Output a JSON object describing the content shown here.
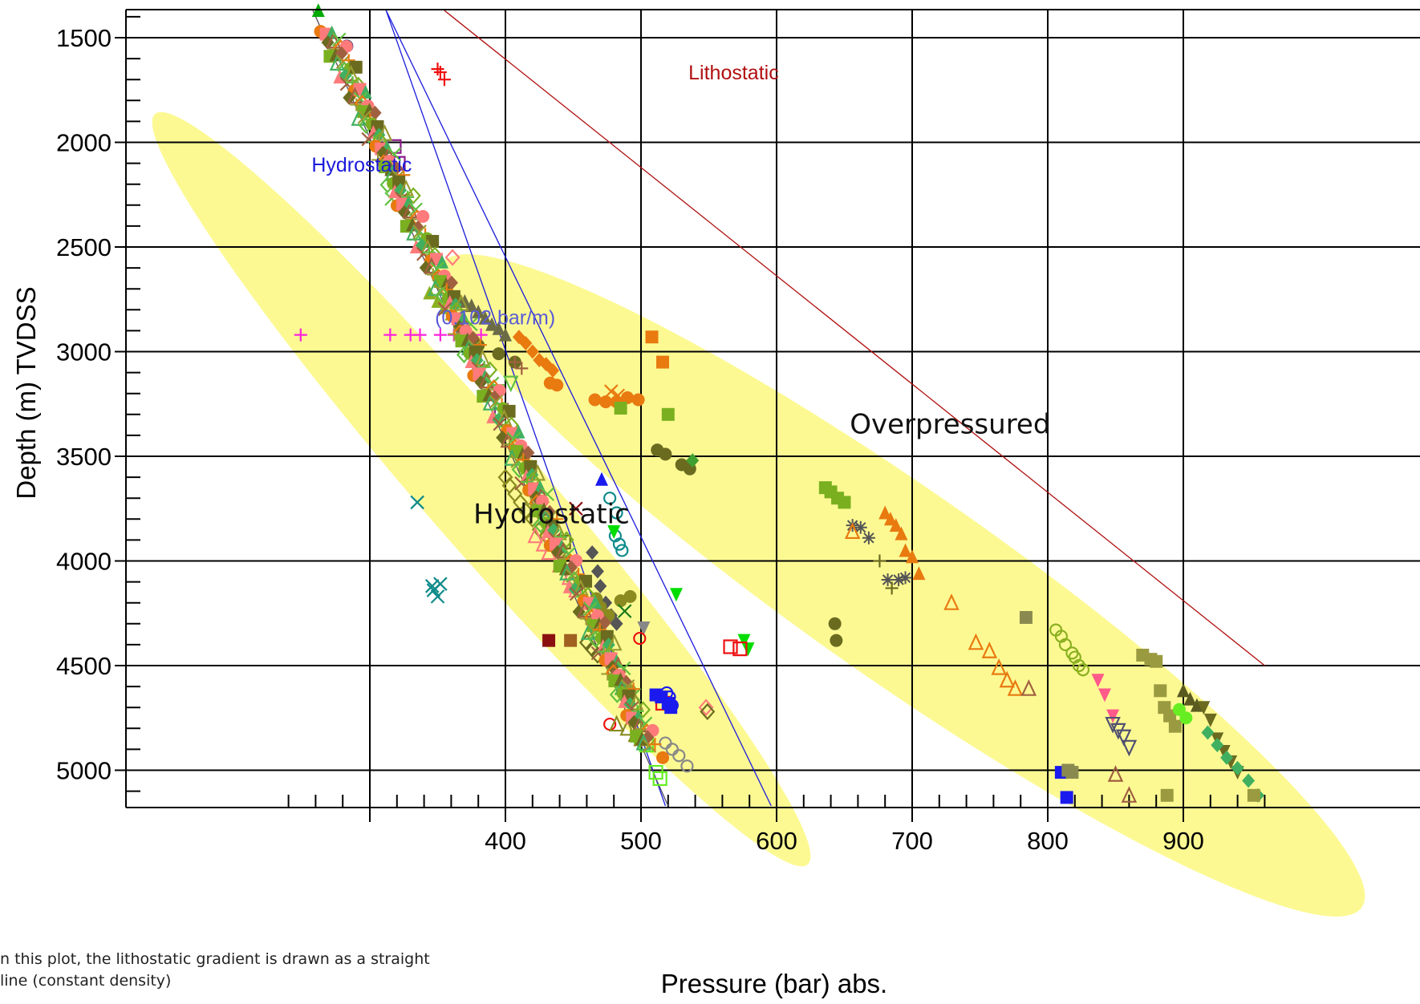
{
  "note": "n this plot, the lithostatic gradient is drawn as a straight line (constant density)",
  "chart_data": {
    "type": "scatter",
    "title": "",
    "xlabel": "Pressure (bar) abs.",
    "ylabel": "Depth (m) TVDSS",
    "xlim": [
      230,
      960
    ],
    "ylim": [
      5170,
      1370
    ],
    "y_inverted": true,
    "grid": true,
    "x_ticks": [
      400,
      500,
      600,
      700,
      800,
      900
    ],
    "y_ticks": [
      1500,
      2000,
      2500,
      3000,
      3500,
      4000,
      4500,
      5000
    ],
    "regions": [
      {
        "name": "Hydrostatic",
        "label_at": [
          434,
          3820
        ]
      },
      {
        "name": "Overpressured",
        "label_at": [
          728,
          3390
        ]
      }
    ],
    "reference_lines": [
      {
        "name": "Lithostatic",
        "color": "#b01010",
        "x": [
          355,
          960
        ],
        "y": [
          1370,
          4500
        ],
        "label_at": [
          535,
          1700
        ]
      },
      {
        "name": "Hydrostatic",
        "color": "#1a1adc",
        "x": [
          312,
          518
        ],
        "y": [
          1370,
          5170
        ],
        "label_at": [
          257,
          2140
        ]
      },
      {
        "name": "Hydrostatic-offset",
        "color": "#1a1adc",
        "x": [
          312,
          596
        ],
        "y": [
          1370,
          5170
        ]
      },
      {
        "name": "Hydrostatic-trend",
        "color": "#505060",
        "x": [
          258,
          520
        ],
        "y": [
          1370,
          5170
        ]
      }
    ],
    "annotations": [
      {
        "text": "(0.102 bar/m)",
        "color": "#5a5ad8",
        "at": [
          348,
          2870
        ]
      }
    ],
    "series": [
      {
        "marker": "plus",
        "color": "#ff22dd",
        "x": [
          249,
          315,
          330,
          337,
          352,
          362,
          372,
          382
        ],
        "y": [
          2920,
          2920,
          2920,
          2920,
          2920,
          2920,
          2920,
          2920
        ]
      },
      {
        "marker": "x",
        "color": "#0e8a8a",
        "x": [
          335,
          346,
          350,
          347,
          352
        ],
        "y": [
          3720,
          4120,
          4170,
          4140,
          4110
        ]
      },
      {
        "marker": "plus",
        "color": "#ee1010",
        "x": [
          350,
          352,
          355
        ],
        "y": [
          1650,
          1665,
          1700
        ]
      },
      {
        "marker": "square-open",
        "color": "#8a1a8a",
        "x": [
          321,
          397,
          318
        ],
        "y": [
          2100,
          3280,
          2020
        ]
      },
      {
        "marker": "diamond-open",
        "color": "#ff7b7b",
        "x": [
          361,
          548
        ],
        "y": [
          2550,
          4700
        ]
      },
      {
        "marker": "circle",
        "color": "#6b6b20",
        "x": [
          373,
          380,
          395,
          407
        ],
        "y": [
          2940,
          2970,
          3010,
          3050
        ]
      },
      {
        "marker": "triangle",
        "color": "#6b6b45",
        "x": [
          365,
          370,
          375,
          380,
          385,
          390,
          395,
          400
        ],
        "y": [
          2740,
          2760,
          2780,
          2810,
          2840,
          2870,
          2890,
          2920
        ]
      },
      {
        "marker": "triangle",
        "color": "#8ab020",
        "x": [
          344,
          350,
          355,
          360
        ],
        "y": [
          2720,
          2760,
          2790,
          2820
        ]
      },
      {
        "marker": "diamond",
        "color": "#e87a10",
        "x": [
          410,
          415,
          420,
          425,
          430,
          435
        ],
        "y": [
          2930,
          2960,
          3000,
          3040,
          3060,
          3090
        ]
      },
      {
        "marker": "circle",
        "color": "#e87a10",
        "x": [
          433,
          438,
          466,
          474,
          482,
          490,
          498
        ],
        "y": [
          3150,
          3160,
          3230,
          3240,
          3240,
          3220,
          3230
        ]
      },
      {
        "marker": "x",
        "color": "#e87a10",
        "x": [
          478,
          483
        ],
        "y": [
          3190,
          3210
        ]
      },
      {
        "marker": "triangle-down-open",
        "color": "#60c040",
        "x": [
          394,
          404
        ],
        "y": [
          3190,
          3150
        ]
      },
      {
        "marker": "plus",
        "color": "#a06040",
        "x": [
          407,
          412
        ],
        "y": [
          3050,
          3080
        ]
      },
      {
        "marker": "square",
        "color": "#e87a10",
        "x": [
          508,
          516
        ],
        "y": [
          2930,
          3050
        ]
      },
      {
        "marker": "square",
        "color": "#7ab020",
        "x": [
          485,
          520
        ],
        "y": [
          3270,
          3300
        ]
      },
      {
        "marker": "circle",
        "color": "#6b6b20",
        "x": [
          512,
          518,
          530,
          536
        ],
        "y": [
          3470,
          3490,
          3540,
          3560
        ]
      },
      {
        "marker": "diamond",
        "color": "#40a030",
        "x": [
          538
        ],
        "y": [
          3520
        ]
      },
      {
        "marker": "triangle",
        "color": "#1a1aee",
        "x": [
          471
        ],
        "y": [
          3610
        ]
      },
      {
        "marker": "circle-open",
        "color": "#0e8a8a",
        "x": [
          477,
          482,
          481,
          484,
          486
        ],
        "y": [
          3700,
          3770,
          3880,
          3920,
          3950
        ]
      },
      {
        "marker": "triangle-down",
        "color": "#00dd00",
        "x": [
          480,
          526,
          576,
          579
        ],
        "y": [
          3860,
          4160,
          4380,
          4420
        ]
      },
      {
        "marker": "x",
        "color": "#8a1010",
        "x": [
          452
        ],
        "y": [
          3750
        ]
      },
      {
        "marker": "diamond",
        "color": "#555555",
        "x": [
          464,
          468,
          470,
          474,
          478,
          482
        ],
        "y": [
          3960,
          4050,
          4120,
          4200,
          4260,
          4300
        ]
      },
      {
        "marker": "circle",
        "color": "#8a8a20",
        "x": [
          467,
          470,
          476,
          485,
          492
        ],
        "y": [
          4180,
          4220,
          4260,
          4190,
          4170
        ]
      },
      {
        "marker": "x",
        "color": "#1a7a1a",
        "x": [
          488
        ],
        "y": [
          4240
        ]
      },
      {
        "marker": "triangle-down",
        "color": "#888888",
        "x": [
          502
        ],
        "y": [
          4320
        ]
      },
      {
        "marker": "square-open",
        "color": "#ee1010",
        "x": [
          566,
          573,
          516
        ],
        "y": [
          4410,
          4420,
          4680
        ]
      },
      {
        "marker": "square",
        "color": "#8a1010",
        "x": [
          432
        ],
        "y": [
          4380
        ]
      },
      {
        "marker": "square",
        "color": "#a06020",
        "x": [
          448
        ],
        "y": [
          4380
        ]
      },
      {
        "marker": "circle-open",
        "color": "#ee1010",
        "x": [
          477,
          499
        ],
        "y": [
          4780,
          4370
        ]
      },
      {
        "marker": "diamond-open",
        "color": "#6b6b20",
        "x": [
          549
        ],
        "y": [
          4720
        ]
      },
      {
        "marker": "square",
        "color": "#1a1aee",
        "x": [
          511,
          520,
          522,
          515,
          810,
          814
        ],
        "y": [
          4640,
          4680,
          4700,
          4650,
          5010,
          5130
        ]
      },
      {
        "marker": "circle-open",
        "color": "#1a1aee",
        "x": [
          519,
          521,
          523
        ],
        "y": [
          4630,
          4650,
          4690
        ]
      },
      {
        "marker": "circle-open",
        "color": "#888888",
        "x": [
          518,
          523,
          528,
          534
        ],
        "y": [
          4870,
          4900,
          4930,
          4980
        ]
      },
      {
        "marker": "square-open",
        "color": "#66ee22",
        "x": [
          500,
          504,
          511,
          514
        ],
        "y": [
          4840,
          4880,
          5010,
          5040
        ]
      },
      {
        "marker": "circle",
        "color": "#e87a10",
        "x": [
          516
        ],
        "y": [
          4940
        ]
      },
      {
        "marker": "square",
        "color": "#7ab020",
        "x": [
          636,
          640,
          645,
          650
        ],
        "y": [
          3650,
          3670,
          3700,
          3720
        ]
      },
      {
        "marker": "asterisk",
        "color": "#555555",
        "x": [
          656,
          662,
          668,
          682,
          690,
          695
        ],
        "y": [
          3830,
          3840,
          3890,
          4090,
          4090,
          4080
        ]
      },
      {
        "marker": "plus",
        "color": "#6b6b20",
        "x": [
          676,
          685
        ],
        "y": [
          4000,
          4130
        ]
      },
      {
        "marker": "triangle",
        "color": "#e87a10",
        "x": [
          680,
          684,
          688,
          692,
          695,
          700,
          705
        ],
        "y": [
          3770,
          3800,
          3830,
          3870,
          3950,
          3980,
          4060
        ]
      },
      {
        "marker": "triangle-open",
        "color": "#e87a10",
        "x": [
          656,
          729,
          747,
          757,
          764,
          770
        ],
        "y": [
          3860,
          4200,
          4390,
          4430,
          4510,
          4570
        ]
      },
      {
        "marker": "triangle-open",
        "color": "#e87a10",
        "x": [
          776
        ],
        "y": [
          4610
        ]
      },
      {
        "marker": "triangle-open",
        "color": "#a06040",
        "x": [
          786,
          850
        ],
        "y": [
          4610,
          5020
        ]
      },
      {
        "marker": "circle",
        "color": "#6b6b20",
        "x": [
          643,
          644
        ],
        "y": [
          4300,
          4380
        ]
      },
      {
        "marker": "square",
        "color": "#8a8a50",
        "x": [
          784,
          815,
          818
        ],
        "y": [
          4270,
          5000,
          5010
        ]
      },
      {
        "marker": "circle-open",
        "color": "#8ab020",
        "x": [
          806,
          810,
          813,
          818,
          820,
          823,
          826
        ],
        "y": [
          4330,
          4360,
          4400,
          4440,
          4460,
          4500,
          4520
        ]
      },
      {
        "marker": "triangle-down",
        "color": "#ff5a8a",
        "x": [
          837,
          842,
          848
        ],
        "y": [
          4570,
          4640,
          4740
        ]
      },
      {
        "marker": "triangle-down-open",
        "color": "#505070",
        "x": [
          848,
          852,
          856,
          860
        ],
        "y": [
          4780,
          4810,
          4840,
          4890
        ]
      },
      {
        "marker": "square",
        "color": "#9a9a40",
        "x": [
          870,
          876,
          880,
          883,
          886,
          890,
          894
        ],
        "y": [
          4450,
          4470,
          4480,
          4620,
          4700,
          4740,
          4790
        ]
      },
      {
        "marker": "circle",
        "color": "#66ee22",
        "x": [
          897,
          902
        ],
        "y": [
          4710,
          4750
        ]
      },
      {
        "marker": "triangle",
        "color": "#5a5a20",
        "x": [
          900,
          905,
          910
        ],
        "y": [
          4620,
          4660,
          4690
        ]
      },
      {
        "marker": "triangle-down",
        "color": "#6b6b20",
        "x": [
          915,
          920,
          925,
          930,
          935,
          940
        ],
        "y": [
          4700,
          4760,
          4850,
          4910,
          4960,
          5010
        ]
      },
      {
        "marker": "diamond",
        "color": "#40b060",
        "x": [
          918,
          925,
          932,
          940,
          948,
          955
        ],
        "y": [
          4820,
          4880,
          4940,
          4990,
          5050,
          5120
        ]
      },
      {
        "marker": "triangle-open",
        "color": "#a06040",
        "x": [
          860
        ],
        "y": [
          5120
        ]
      },
      {
        "marker": "square",
        "color": "#9a9a40",
        "x": [
          888,
          952
        ],
        "y": [
          5120,
          5120
        ]
      },
      {
        "marker": "triangle",
        "color": "#00aa00",
        "x": [
          262
        ],
        "y": [
          1370
        ]
      },
      {
        "marker": "circle-open",
        "color": "#303070",
        "x": [
          283
        ],
        "y": [
          1540
        ]
      },
      {
        "marker": "diamond-open",
        "color": "#8a8a20",
        "x": [
          400,
          403,
          407,
          411,
          415,
          420,
          425,
          430,
          436,
          440
        ],
        "y": [
          3600,
          3640,
          3680,
          3720,
          3760,
          3800,
          3850,
          3880,
          3920,
          3960
        ]
      },
      {
        "marker": "triangle-open",
        "color": "#ff7b7b",
        "x": [
          422,
          428,
          432,
          440,
          447,
          452
        ],
        "y": [
          3880,
          3920,
          3960,
          4020,
          4080,
          4140
        ]
      },
      {
        "marker": "square-open",
        "color": "#6b6b20",
        "x": [
          443,
          452
        ],
        "y": [
          3910,
          4110
        ]
      },
      {
        "marker": "diamond-open",
        "color": "#6b6b20",
        "x": [
          460,
          464,
          468
        ],
        "y": [
          4390,
          4420,
          4450
        ]
      },
      {
        "marker": "triangle-open",
        "color": "#8a8a20",
        "x": [
          482,
          490,
          496,
          500
        ],
        "y": [
          4780,
          4800,
          4830,
          4850
        ]
      },
      {
        "marker": "x",
        "color": "#60c040",
        "x": [
          488,
          495,
          316
        ],
        "y": [
          4610,
          4640,
          2270
        ]
      },
      {
        "marker": "circle",
        "color": "#9a9a30",
        "x": [
          487,
          492
        ],
        "y": [
          4580,
          4620
        ]
      }
    ]
  }
}
